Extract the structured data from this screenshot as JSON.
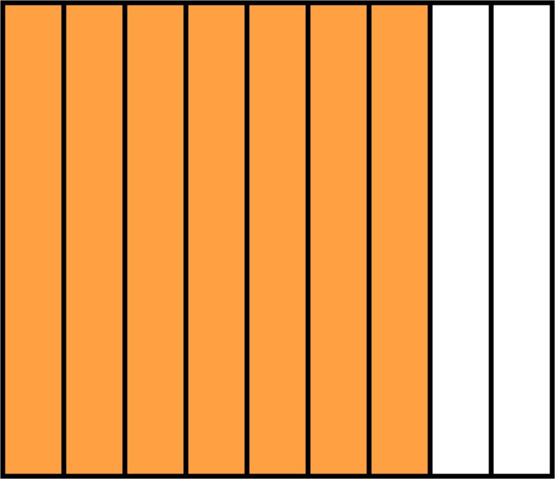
{
  "fraction_bar": {
    "total_parts": 9,
    "shaded_parts": 7,
    "shaded_fraction": 0.7778,
    "colors": {
      "shaded": "#FFA143",
      "unshaded": "#FFFFFF",
      "outline": "#000000"
    }
  }
}
